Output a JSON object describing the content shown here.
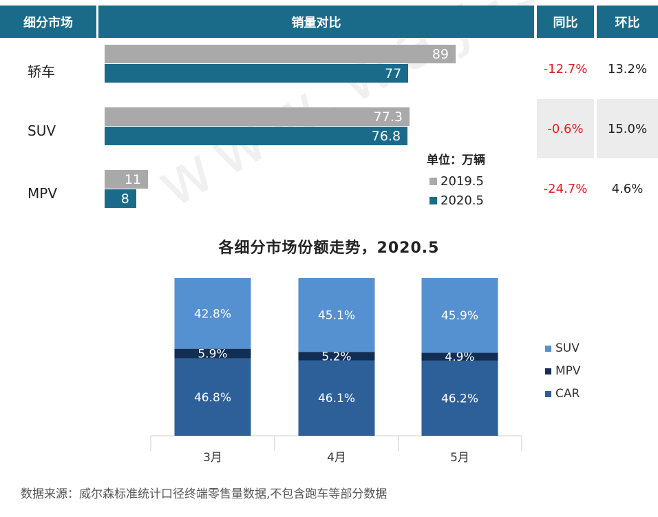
{
  "watermark": "www.way-s.cn",
  "table": {
    "headers": [
      "细分市场",
      "销量对比",
      "同比",
      "环比"
    ],
    "rows": [
      {
        "name": "轿车",
        "v2019": 89,
        "v2019_label": "89",
        "v2020": 77,
        "v2020_label": "77",
        "yoy": "-12.7%",
        "mom": "13.2%"
      },
      {
        "name": "SUV",
        "v2019": 77.3,
        "v2019_label": "77.3",
        "v2020": 76.8,
        "v2020_label": "76.8",
        "yoy": "-0.6%",
        "mom": "15.0%"
      },
      {
        "name": "MPV",
        "v2019": 11,
        "v2019_label": "11",
        "v2020": 8,
        "v2020_label": "8",
        "yoy": "-24.7%",
        "mom": "4.6%"
      }
    ],
    "unit": "单位：万辆",
    "legend": [
      "2019.5",
      "2020.5"
    ]
  },
  "chart_data": {
    "type": "bar",
    "stacked": true,
    "title": "各细分市场份额走势，2020.5",
    "categories": [
      "3月",
      "4月",
      "5月"
    ],
    "series": [
      {
        "name": "CAR",
        "values": [
          46.8,
          46.1,
          46.2
        ],
        "labels": [
          "46.8%",
          "46.1%",
          "46.2%"
        ],
        "color": "#2d5f99"
      },
      {
        "name": "MPV",
        "values": [
          5.9,
          5.2,
          4.9
        ],
        "labels": [
          "5.9%",
          "5.2%",
          "4.9%"
        ],
        "color": "#112e55"
      },
      {
        "name": "SUV",
        "values": [
          42.8,
          45.1,
          45.9
        ],
        "labels": [
          "42.8%",
          "45.1%",
          "45.9%"
        ],
        "color": "#5590d0"
      }
    ],
    "legend_order": [
      "SUV",
      "MPV",
      "CAR"
    ],
    "legend_position": "right"
  },
  "source": "数据来源：威尔森标准统计口径终端零售量数据,不包含跑车等部分数据"
}
